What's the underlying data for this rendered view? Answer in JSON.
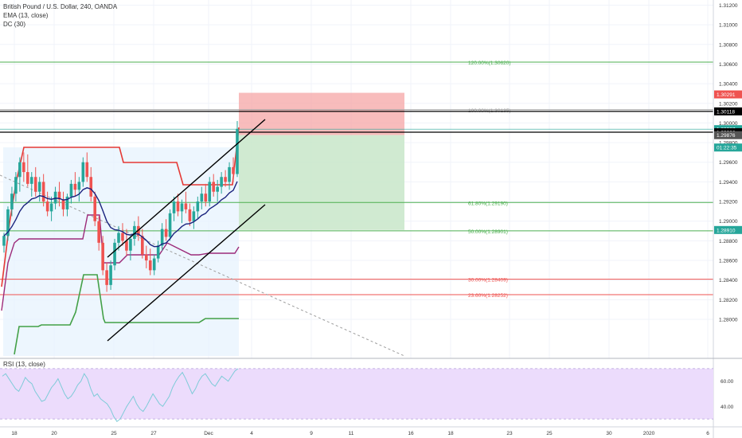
{
  "legend": {
    "symbol": "British Pound / U.S. Dollar, 240, OANDA",
    "ema": "EMA (13, close)",
    "dc": "DC (30)",
    "rsi": "RSI (13, close)"
  },
  "colors": {
    "up": "#26a69a",
    "down": "#ef5350",
    "fib_green": "#4caf50",
    "fib_red": "#ef5350",
    "dc_upper": "#e53935",
    "dc_lower": "#43a047",
    "dc_mid": "#9c2b7a",
    "ema": "#1a237e",
    "rsi": "#7ecbd8",
    "rsi_band": "#ecdcfc"
  },
  "chart_data": {
    "type": "candlestick",
    "title": "British Pound / U.S. Dollar, 240, OANDA",
    "ylim": [
      1.277,
      1.3122
    ],
    "price_ticks": [
      "1.31200",
      "1.31000",
      "1.30800",
      "1.30600",
      "1.30400",
      "1.30200",
      "1.30000",
      "1.29800",
      "1.29600",
      "1.29400",
      "1.29200",
      "1.29000",
      "1.28800",
      "1.28600",
      "1.28400",
      "1.28200",
      "1.28000"
    ],
    "time_ticks": [
      "18",
      "20",
      "25",
      "27",
      "Dec",
      "4",
      "9",
      "11",
      "16",
      "18",
      "23",
      "25",
      "30",
      "2020",
      "6"
    ],
    "fib_levels": [
      {
        "label": "120.00%(1.30620)",
        "value": 1.3062,
        "color": "green"
      },
      {
        "label": "100.00%(1.30135)",
        "value": 1.30135,
        "color": "gray"
      },
      {
        "label": "61.80%(1.29190)",
        "value": 1.2919,
        "color": "green"
      },
      {
        "label": "50.00%(1.28901)",
        "value": 1.28901,
        "color": "green"
      },
      {
        "label": "30.00%(1.28409)",
        "value": 1.28409,
        "color": "red"
      },
      {
        "label": "23.60%(1.28252)",
        "value": 1.28252,
        "color": "red"
      }
    ],
    "price_badges": [
      {
        "label": "1.30291",
        "value": 1.30291,
        "bg": "#ef5350"
      },
      {
        "label": "1.30118",
        "value": 1.30118,
        "bg": "#000000"
      },
      {
        "label": "1.29937",
        "value": 1.29937,
        "bg": "#26a69a"
      },
      {
        "label": "01:22:35",
        "value": 1.2975,
        "bg": "#26a69a"
      },
      {
        "label": "1.29906",
        "value": 1.29906,
        "bg": "#000000"
      },
      {
        "label": "1.29876",
        "value": 1.29876,
        "bg": "#555555"
      },
      {
        "label": "1.28910",
        "value": 1.2891,
        "bg": "#26a69a"
      }
    ],
    "position_box": {
      "entry": 1.29876,
      "stop": 1.30291,
      "target": 1.2891
    },
    "rsi": {
      "ticks": [
        "60.00",
        "40.00"
      ],
      "ylim": [
        25,
        75
      ],
      "band": [
        30,
        70
      ],
      "values": [
        64,
        66,
        62,
        58,
        54,
        52,
        57,
        63,
        60,
        58,
        52,
        48,
        44,
        45,
        50,
        55,
        58,
        62,
        56,
        50,
        46,
        48,
        52,
        57,
        60,
        66,
        62,
        54,
        48,
        50,
        46,
        44,
        42,
        38,
        32,
        28,
        30,
        35,
        40,
        44,
        48,
        42,
        38,
        36,
        40,
        45,
        50,
        46,
        42,
        40,
        44,
        48,
        55,
        60,
        64,
        67,
        62,
        56,
        50,
        54,
        60,
        64,
        66,
        62,
        58,
        56,
        60,
        64,
        62,
        60,
        64,
        68,
        70
      ]
    },
    "candles": [
      [
        1.2875,
        1.2888,
        1.2868,
        1.2885
      ],
      [
        1.2885,
        1.2915,
        1.288,
        1.2912
      ],
      [
        1.2912,
        1.2935,
        1.2905,
        1.2928
      ],
      [
        1.2928,
        1.295,
        1.292,
        1.2945
      ],
      [
        1.2945,
        1.2965,
        1.293,
        1.296
      ],
      [
        1.296,
        1.297,
        1.294,
        1.295
      ],
      [
        1.295,
        1.2968,
        1.2935,
        1.2938
      ],
      [
        1.2938,
        1.295,
        1.2925,
        1.2945
      ],
      [
        1.2945,
        1.2955,
        1.2925,
        1.293
      ],
      [
        1.293,
        1.2945,
        1.292,
        1.294
      ],
      [
        1.294,
        1.2948,
        1.2915,
        1.292
      ],
      [
        1.292,
        1.293,
        1.2905,
        1.291
      ],
      [
        1.291,
        1.2925,
        1.29,
        1.2918
      ],
      [
        1.2918,
        1.2935,
        1.2912,
        1.293
      ],
      [
        1.293,
        1.294,
        1.2915,
        1.2922
      ],
      [
        1.2922,
        1.293,
        1.2905,
        1.2912
      ],
      [
        1.2912,
        1.2928,
        1.2905,
        1.2925
      ],
      [
        1.2925,
        1.2942,
        1.2918,
        1.2938
      ],
      [
        1.2938,
        1.295,
        1.2925,
        1.2932
      ],
      [
        1.2932,
        1.2945,
        1.292,
        1.294
      ],
      [
        1.294,
        1.2965,
        1.2935,
        1.296
      ],
      [
        1.296,
        1.297,
        1.294,
        1.2945
      ],
      [
        1.2945,
        1.2955,
        1.292,
        1.2925
      ],
      [
        1.2925,
        1.293,
        1.2895,
        1.29
      ],
      [
        1.29,
        1.2905,
        1.287,
        1.2878
      ],
      [
        1.2878,
        1.2885,
        1.2845,
        1.285
      ],
      [
        1.285,
        1.2858,
        1.2828,
        1.2835
      ],
      [
        1.2835,
        1.286,
        1.283,
        1.2855
      ],
      [
        1.2855,
        1.2882,
        1.285,
        1.2878
      ],
      [
        1.2878,
        1.2895,
        1.287,
        1.2888
      ],
      [
        1.2888,
        1.2898,
        1.2875,
        1.288
      ],
      [
        1.288,
        1.2892,
        1.2865,
        1.287
      ],
      [
        1.287,
        1.2885,
        1.286,
        1.2882
      ],
      [
        1.2882,
        1.29,
        1.2875,
        1.2895
      ],
      [
        1.2895,
        1.2905,
        1.288,
        1.2885
      ],
      [
        1.2885,
        1.2892,
        1.2862,
        1.2866
      ],
      [
        1.2866,
        1.2875,
        1.2852,
        1.286
      ],
      [
        1.286,
        1.2872,
        1.2845,
        1.285
      ],
      [
        1.285,
        1.2866,
        1.2845,
        1.2862
      ],
      [
        1.2862,
        1.288,
        1.2858,
        1.2875
      ],
      [
        1.2875,
        1.2898,
        1.287,
        1.2892
      ],
      [
        1.2892,
        1.2902,
        1.288,
        1.2884
      ],
      [
        1.2884,
        1.2912,
        1.288,
        1.2908
      ],
      [
        1.2908,
        1.2925,
        1.29,
        1.292
      ],
      [
        1.292,
        1.2928,
        1.2905,
        1.291
      ],
      [
        1.291,
        1.2922,
        1.2898,
        1.2918
      ],
      [
        1.2918,
        1.293,
        1.2908,
        1.2912
      ],
      [
        1.2912,
        1.2918,
        1.2895,
        1.29
      ],
      [
        1.29,
        1.2915,
        1.2892,
        1.291
      ],
      [
        1.291,
        1.2925,
        1.2902,
        1.292
      ],
      [
        1.292,
        1.2935,
        1.2912,
        1.2928
      ],
      [
        1.2928,
        1.2938,
        1.2915,
        1.292
      ],
      [
        1.292,
        1.2945,
        1.2915,
        1.294
      ],
      [
        1.294,
        1.2948,
        1.2925,
        1.293
      ],
      [
        1.293,
        1.2942,
        1.292,
        1.2935
      ],
      [
        1.2935,
        1.295,
        1.2928,
        1.2945
      ],
      [
        1.2945,
        1.2952,
        1.2935,
        1.294
      ],
      [
        1.294,
        1.296,
        1.2932,
        1.2955
      ],
      [
        1.2955,
        1.2965,
        1.294,
        1.2948
      ],
      [
        1.2948,
        1.3002,
        1.2945,
        1.2994
      ]
    ]
  }
}
